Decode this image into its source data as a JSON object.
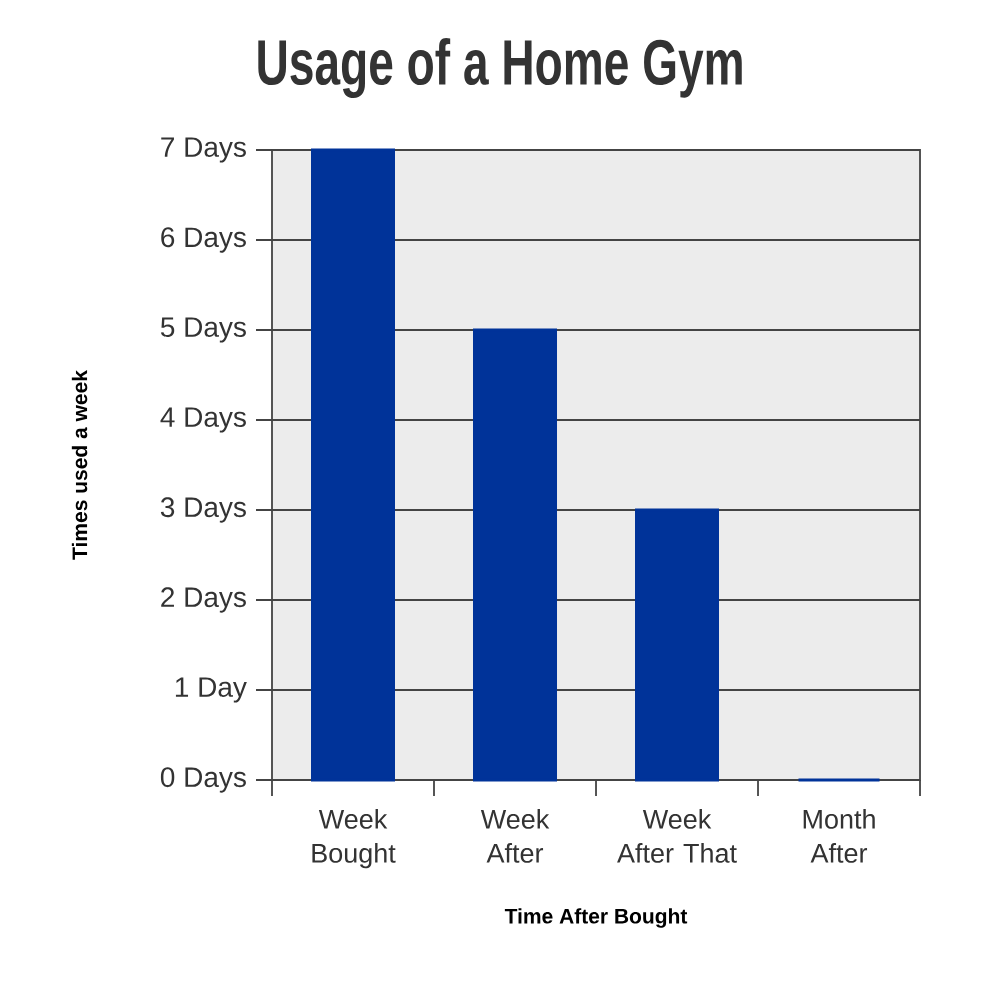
{
  "chart_data": {
    "type": "bar",
    "title": "Usage of a Home Gym",
    "xlabel": "Time After Bought",
    "ylabel": "Times used a week",
    "categories": [
      "Week Bought",
      "Week After",
      "Week After That",
      "Month After"
    ],
    "values": [
      7,
      5,
      3,
      0
    ],
    "color": "#003399",
    "ylim": [
      0,
      7
    ],
    "yticks": [
      {
        "value": 0,
        "label": "0 Days"
      },
      {
        "value": 1,
        "label": "1 Day"
      },
      {
        "value": 2,
        "label": "2 Days"
      },
      {
        "value": 3,
        "label": "3 Days"
      },
      {
        "value": 4,
        "label": "4 Days"
      },
      {
        "value": 5,
        "label": "5 Days"
      },
      {
        "value": 6,
        "label": "6 Days"
      },
      {
        "value": 7,
        "label": "7 Days"
      }
    ],
    "grid": "y"
  }
}
